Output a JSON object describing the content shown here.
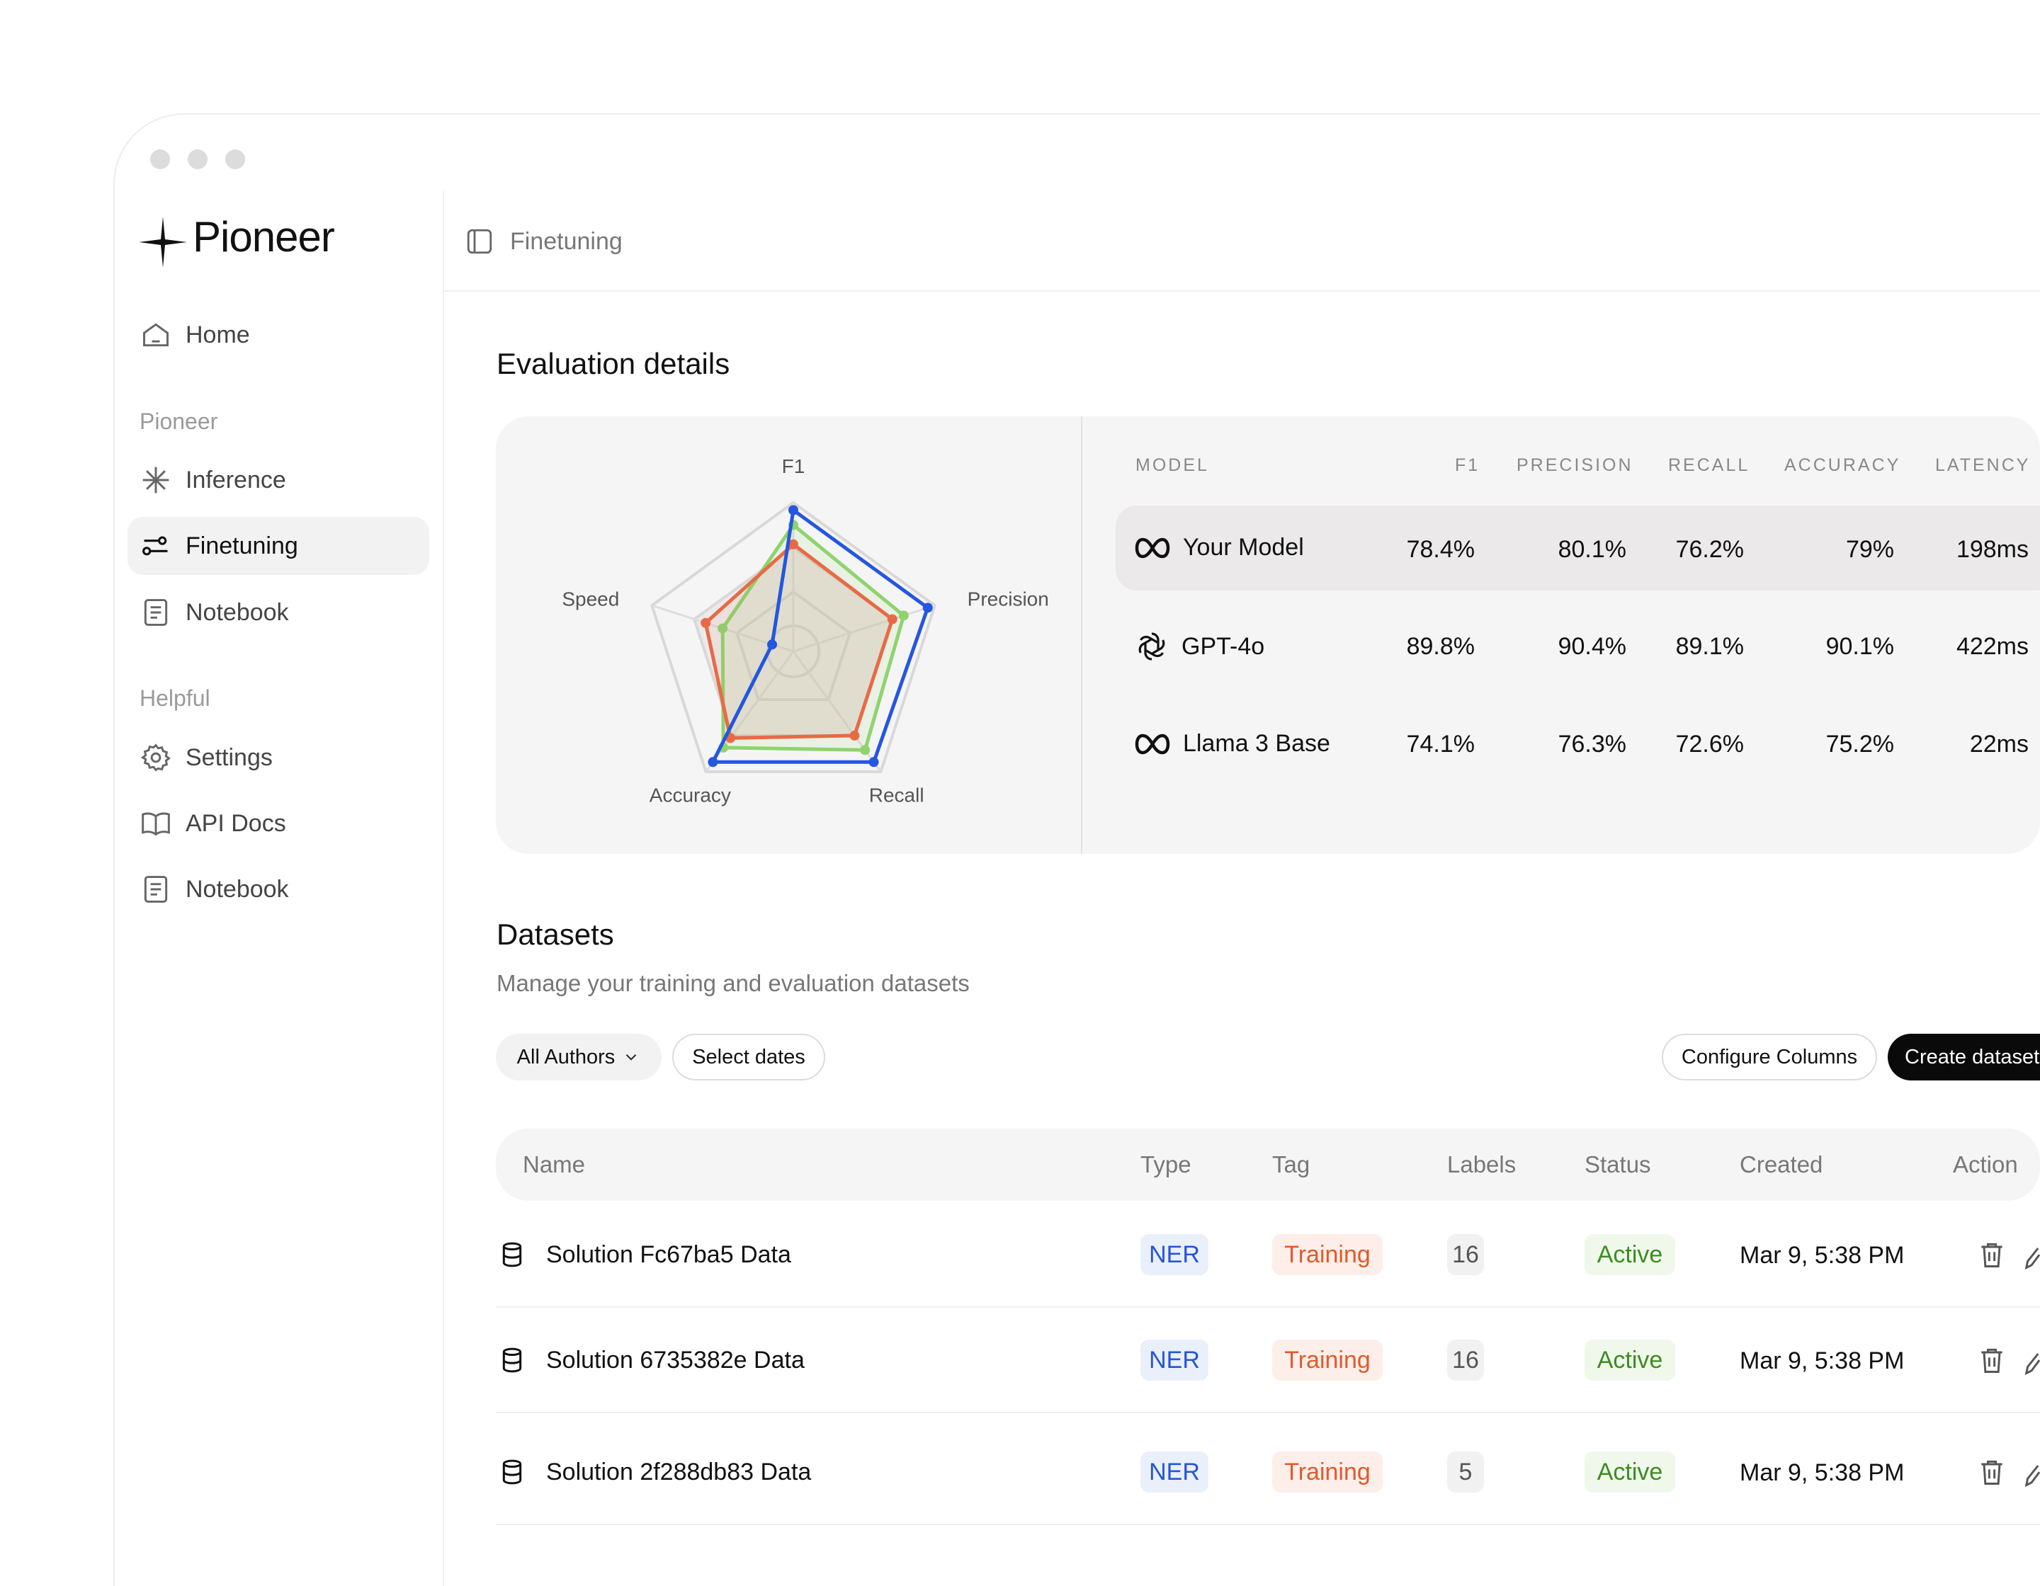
{
  "app": {
    "brand": "Pioneer"
  },
  "sidebar": {
    "items_top": [
      {
        "label": "Home",
        "icon": "home-icon"
      }
    ],
    "section1": "Pioneer",
    "items_pioneer": [
      {
        "label": "Inference",
        "icon": "asterisk-icon"
      },
      {
        "label": "Finetuning",
        "icon": "sliders-icon",
        "active": true
      },
      {
        "label": "Notebook",
        "icon": "notebook-icon"
      }
    ],
    "section2": "Helpful",
    "items_helpful": [
      {
        "label": "Settings",
        "icon": "gear-icon"
      },
      {
        "label": "API Docs",
        "icon": "book-icon"
      },
      {
        "label": "Notebook",
        "icon": "notebook-icon"
      }
    ]
  },
  "header": {
    "breadcrumb": "Finetuning"
  },
  "evaluation": {
    "title": "Evaluation details",
    "chart_data": {
      "type": "radar",
      "axes": [
        "F1",
        "Precision",
        "Recall",
        "Accuracy",
        "Speed"
      ],
      "colors": {
        "your_model": "#2456e0",
        "gpt4o": "#e86a45",
        "llama": "#8fd36e"
      }
    },
    "columns": [
      "MODEL",
      "F1",
      "PRECISION",
      "RECALL",
      "ACCURACY",
      "LATENCY"
    ],
    "rows": [
      {
        "model": "Your Model",
        "icon": "meta-icon",
        "f1": "78.4%",
        "precision": "80.1%",
        "recall": "76.2%",
        "accuracy": "79%",
        "latency": "198ms"
      },
      {
        "model": "GPT-4o",
        "icon": "openai-icon",
        "f1": "89.8%",
        "precision": "90.4%",
        "recall": "89.1%",
        "accuracy": "90.1%",
        "latency": "422ms"
      },
      {
        "model": "Llama 3 Base",
        "icon": "meta-icon",
        "f1": "74.1%",
        "precision": "76.3%",
        "recall": "72.6%",
        "accuracy": "75.2%",
        "latency": "22ms"
      }
    ]
  },
  "datasets": {
    "title": "Datasets",
    "subtitle": "Manage your training and evaluation datasets",
    "filters": {
      "authors": "All Authors",
      "dates": "Select dates"
    },
    "buttons": {
      "configure": "Configure Columns",
      "create": "Create dataset"
    },
    "columns": [
      "Name",
      "Type",
      "Tag",
      "Labels",
      "Status",
      "Created",
      "Action"
    ],
    "rows": [
      {
        "name": "Solution Fc67ba5 Data",
        "type": "NER",
        "tag": "Training",
        "labels": "16",
        "status": "Active",
        "created": "Mar 9, 5:38 PM"
      },
      {
        "name": "Solution 6735382e Data",
        "type": "NER",
        "tag": "Training",
        "labels": "16",
        "status": "Active",
        "created": "Mar 9, 5:38 PM"
      },
      {
        "name": "Solution 2f288db83 Data",
        "type": "NER",
        "tag": "Training",
        "labels": "5",
        "status": "Active",
        "created": "Mar 9, 5:38 PM"
      }
    ]
  }
}
